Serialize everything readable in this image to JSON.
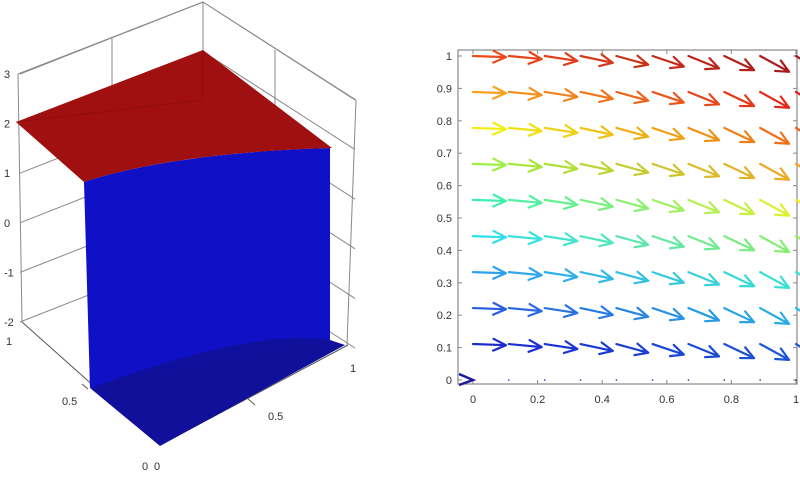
{
  "chart_data": [
    {
      "type": "surface3d",
      "title": "",
      "xlabel": "",
      "ylabel": "",
      "zlabel": "",
      "z_ticks": [
        "3",
        "2",
        "1",
        "0",
        "-1",
        "-2"
      ],
      "x_ticks": [
        "0",
        "0.5",
        "1"
      ],
      "y_ticks": [
        "1",
        "0.5",
        "0"
      ],
      "zlim": [
        -2,
        3
      ],
      "xlim": [
        0,
        1
      ],
      "ylim": [
        0,
        1
      ],
      "grid": true,
      "description": "Piecewise surface: red upper sheet near z=2 over the back region, sharp vertical blue wall dropping to z=-2, flat blue floor over the front region",
      "colors": {
        "upper_sheet": "#a01010",
        "wall": "#1010c8",
        "floor": "#10109a"
      }
    },
    {
      "type": "quiver",
      "title": "",
      "xlabel": "",
      "ylabel": "",
      "x_ticks": [
        "0",
        "0.2",
        "0.4",
        "0.6",
        "0.8",
        "1"
      ],
      "y_ticks": [
        "0",
        "0.1",
        "0.2",
        "0.3",
        "0.4",
        "0.5",
        "0.6",
        "0.7",
        "0.8",
        "0.9",
        "1"
      ],
      "xlim": [
        0,
        1
      ],
      "ylim": [
        0,
        1
      ],
      "grid": false,
      "colormap": "jet (by y)",
      "x": [
        0,
        0.111,
        0.222,
        0.333,
        0.444,
        0.556,
        0.667,
        0.778,
        0.889,
        1.0
      ],
      "y": [
        0,
        0.111,
        0.222,
        0.333,
        0.444,
        0.556,
        0.667,
        0.778,
        0.889,
        1.0
      ],
      "row_colors": [
        "#1a1a9c",
        "#1c2ad0",
        "#2a5ee0",
        "#2fa0ee",
        "#2ee0ee",
        "#3ef0b0",
        "#9cf040",
        "#f0f010",
        "#f8a020",
        "#f04a1a"
      ],
      "row_colors_right": [
        "#14147e",
        "#1a5ad8",
        "#28b8e8",
        "#38e8d0",
        "#90f060",
        "#f0f020",
        "#f8a020",
        "#f06018",
        "#e01a1a",
        "#a0141a"
      ],
      "arrow_angle_deg_note": "arrows point right, tilting further downward with increasing x; row y=0 arrows near-zero except first",
      "u": 1.0,
      "v_start": 0.0,
      "v_end": -0.6
    }
  ]
}
